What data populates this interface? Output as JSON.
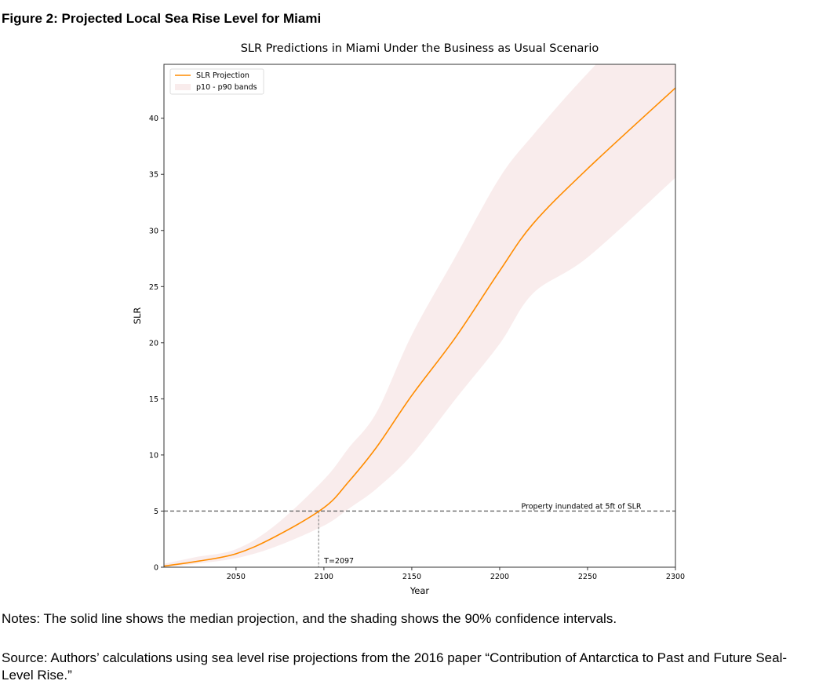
{
  "figure": {
    "title": "Figure 2: Projected Local Sea Rise Level for Miami",
    "notes": "Notes: The solid line shows the median projection, and the shading shows the 90% confidence intervals.",
    "source": "Source: Authors’ calculations using sea level rise projections from the 2016 paper “Contribution of Antarctica to Past and Future Seal-Level Rise.”"
  },
  "chart_data": {
    "type": "line",
    "title": "SLR Predictions in Miami Under the Business as Usual Scenario",
    "xlabel": "Year",
    "ylabel": "SLR",
    "xlim": [
      2009,
      2300
    ],
    "ylim": [
      0,
      44.8
    ],
    "xticks": [
      2050,
      2100,
      2150,
      2200,
      2250,
      2300
    ],
    "yticks": [
      0,
      5,
      10,
      15,
      20,
      25,
      30,
      35,
      40
    ],
    "grid": false,
    "legend": {
      "position": "upper left",
      "entries": [
        "SLR Projection",
        "p10 - p90 bands"
      ]
    },
    "colors": {
      "line": "#ff8c00",
      "band": "#f9ecec"
    },
    "x": [
      2009,
      2027,
      2050,
      2072,
      2100,
      2114,
      2130,
      2150,
      2175,
      2200,
      2219,
      2250,
      2300
    ],
    "series": [
      {
        "name": "SLR Projection",
        "values": [
          0.1,
          0.5,
          1.2,
          2.7,
          5.3,
          7.6,
          10.7,
          15.3,
          20.5,
          26.4,
          30.6,
          35.5,
          42.7
        ]
      },
      {
        "name": "p90",
        "values": [
          0.3,
          0.9,
          1.6,
          3.7,
          7.8,
          10.6,
          13.8,
          20.7,
          27.7,
          34.7,
          38.5,
          44.0,
          52.0
        ]
      },
      {
        "name": "p10",
        "values": [
          0.0,
          0.3,
          0.8,
          1.8,
          3.7,
          5.2,
          7.0,
          10.0,
          15.0,
          19.9,
          24.4,
          27.6,
          34.7
        ]
      }
    ],
    "annotations": [
      {
        "type": "hline",
        "y": 5,
        "label": "Property inundated at 5ft of SLR"
      },
      {
        "type": "vline",
        "x": 2097,
        "label": "T=2097"
      }
    ]
  }
}
